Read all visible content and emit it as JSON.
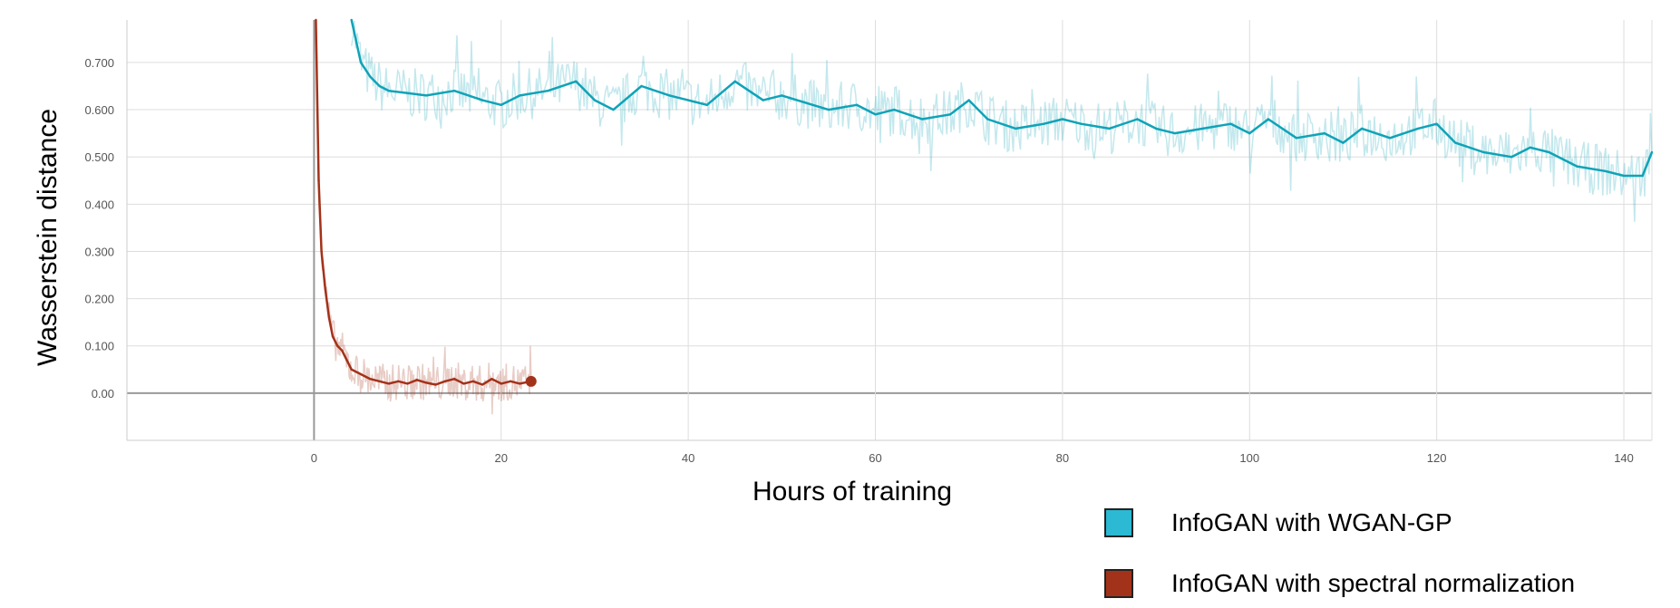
{
  "chart_data": {
    "type": "line",
    "xlabel": "Hours of training",
    "ylabel": "Wasserstein distance",
    "xlim": [
      -20,
      143
    ],
    "ylim": [
      -0.1,
      0.79
    ],
    "x_ticks": [
      0,
      20,
      40,
      60,
      80,
      100,
      120,
      140
    ],
    "x_tick_labels": [
      "0",
      "20",
      "40",
      "60",
      "80",
      "100",
      "120",
      "140"
    ],
    "y_ticks": [
      0.0,
      0.1,
      0.2,
      0.3,
      0.4,
      0.5,
      0.6,
      0.7
    ],
    "y_tick_labels": [
      "0.00",
      "0.100",
      "0.200",
      "0.300",
      "0.400",
      "0.500",
      "0.600",
      "0.700"
    ],
    "grid": true,
    "legend_position": "bottom-right",
    "series": [
      {
        "name": "InfoGAN with WGAN-GP",
        "color": "#0fa3b8",
        "x": [
          4,
          5,
          6,
          7,
          8,
          10,
          12,
          15,
          18,
          20,
          22,
          25,
          28,
          30,
          32,
          35,
          38,
          40,
          42,
          45,
          48,
          50,
          55,
          58,
          60,
          62,
          65,
          68,
          70,
          72,
          75,
          78,
          80,
          82,
          85,
          88,
          90,
          92,
          95,
          98,
          100,
          102,
          105,
          108,
          110,
          112,
          115,
          118,
          120,
          122,
          125,
          128,
          130,
          132,
          135,
          138,
          140,
          142,
          143
        ],
        "y": [
          0.79,
          0.7,
          0.67,
          0.65,
          0.64,
          0.635,
          0.63,
          0.64,
          0.62,
          0.61,
          0.63,
          0.64,
          0.66,
          0.62,
          0.6,
          0.65,
          0.63,
          0.62,
          0.61,
          0.66,
          0.62,
          0.63,
          0.6,
          0.61,
          0.59,
          0.6,
          0.58,
          0.59,
          0.62,
          0.58,
          0.56,
          0.57,
          0.58,
          0.57,
          0.56,
          0.58,
          0.56,
          0.55,
          0.56,
          0.57,
          0.55,
          0.58,
          0.54,
          0.55,
          0.53,
          0.56,
          0.54,
          0.56,
          0.57,
          0.53,
          0.51,
          0.5,
          0.52,
          0.51,
          0.48,
          0.47,
          0.46,
          0.46,
          0.51
        ]
      },
      {
        "name": "InfoGAN with spectral normalization",
        "color": "#a3321a",
        "x": [
          0.2,
          0.5,
          0.8,
          1.2,
          1.6,
          2.0,
          2.5,
          3.0,
          3.5,
          4.0,
          5.0,
          6.0,
          7.0,
          8.0,
          9.0,
          10.0,
          11.0,
          12.0,
          13.0,
          14.0,
          15.0,
          16.0,
          17.0,
          18.0,
          19.0,
          20.0,
          21.0,
          22.0,
          23.2
        ],
        "y": [
          0.79,
          0.45,
          0.3,
          0.22,
          0.16,
          0.12,
          0.1,
          0.09,
          0.07,
          0.05,
          0.04,
          0.03,
          0.025,
          0.02,
          0.025,
          0.02,
          0.028,
          0.022,
          0.018,
          0.025,
          0.03,
          0.02,
          0.025,
          0.018,
          0.03,
          0.02,
          0.025,
          0.02,
          0.025
        ]
      }
    ]
  }
}
